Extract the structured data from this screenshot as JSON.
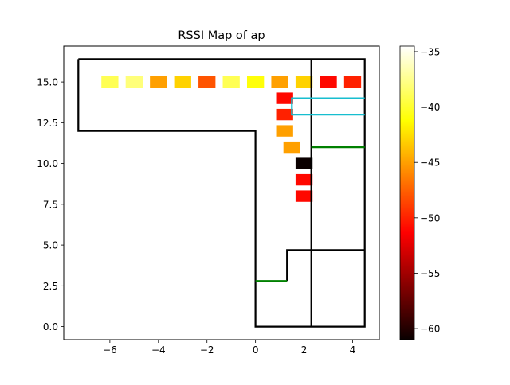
{
  "chart_data": {
    "type": "heatmap",
    "title": "RSSI Map of ap",
    "xlabel": "",
    "ylabel": "",
    "xlim": [
      -7.9,
      5.1
    ],
    "ylim": [
      -0.8,
      17.2
    ],
    "x_ticks": [
      -6,
      -4,
      -2,
      0,
      2,
      4
    ],
    "x_tick_labels": [
      "−6",
      "−4",
      "−2",
      "0",
      "2",
      "4"
    ],
    "y_ticks": [
      0.0,
      2.5,
      5.0,
      7.5,
      10.0,
      12.5,
      15.0
    ],
    "y_tick_labels": [
      "0.0",
      "2.5",
      "5.0",
      "7.5",
      "10.0",
      "12.5",
      "15.0"
    ],
    "grid": false,
    "colormap": "hot",
    "colorbar": {
      "min": -61,
      "max": -34.5,
      "ticks": [
        -35,
        -40,
        -45,
        -50,
        -55,
        -60
      ],
      "tick_labels": [
        "−35",
        "−40",
        "−45",
        "−50",
        "−55",
        "−60"
      ]
    },
    "cells_size": 0.7,
    "cells": [
      {
        "x": -6.0,
        "y": 15.0,
        "rssi": -39
      },
      {
        "x": -5.0,
        "y": 15.0,
        "rssi": -38
      },
      {
        "x": -4.0,
        "y": 15.0,
        "rssi": -45
      },
      {
        "x": -3.0,
        "y": 15.0,
        "rssi": -43
      },
      {
        "x": -2.0,
        "y": 15.0,
        "rssi": -48
      },
      {
        "x": -1.0,
        "y": 15.0,
        "rssi": -39
      },
      {
        "x": 0.0,
        "y": 15.0,
        "rssi": -41
      },
      {
        "x": 1.0,
        "y": 15.0,
        "rssi": -45
      },
      {
        "x": 2.0,
        "y": 15.0,
        "rssi": -43
      },
      {
        "x": 3.0,
        "y": 15.0,
        "rssi": -51
      },
      {
        "x": 4.0,
        "y": 15.0,
        "rssi": -50
      },
      {
        "x": 1.2,
        "y": 14.0,
        "rssi": -51
      },
      {
        "x": 1.2,
        "y": 13.0,
        "rssi": -50
      },
      {
        "x": 1.2,
        "y": 12.0,
        "rssi": -45
      },
      {
        "x": 1.5,
        "y": 11.0,
        "rssi": -45
      },
      {
        "x": 2.0,
        "y": 10.0,
        "rssi": -61
      },
      {
        "x": 2.0,
        "y": 9.0,
        "rssi": -51
      },
      {
        "x": 2.0,
        "y": 8.0,
        "rssi": -51
      }
    ],
    "walls": [
      {
        "color": "#000000",
        "points": [
          [
            -7.3,
            16.4
          ],
          [
            4.5,
            16.4
          ],
          [
            4.5,
            0.0
          ],
          [
            0.0,
            0.0
          ],
          [
            0.0,
            12.0
          ],
          [
            -7.3,
            12.0
          ],
          [
            -7.3,
            16.4
          ]
        ]
      },
      {
        "color": "#000000",
        "points": [
          [
            2.3,
            16.4
          ],
          [
            2.3,
            0.0
          ]
        ]
      },
      {
        "color": "#000000",
        "points": [
          [
            1.3,
            2.8
          ],
          [
            1.3,
            4.7
          ],
          [
            4.5,
            4.7
          ]
        ]
      },
      {
        "color": "#008000",
        "points": [
          [
            0.0,
            2.8
          ],
          [
            1.3,
            2.8
          ]
        ]
      },
      {
        "color": "#008000",
        "points": [
          [
            2.3,
            11.0
          ],
          [
            4.5,
            11.0
          ]
        ]
      },
      {
        "color": "#17becf",
        "points": [
          [
            4.5,
            14.0
          ],
          [
            1.5,
            14.0
          ],
          [
            1.5,
            13.0
          ],
          [
            4.5,
            13.0
          ]
        ]
      }
    ]
  }
}
